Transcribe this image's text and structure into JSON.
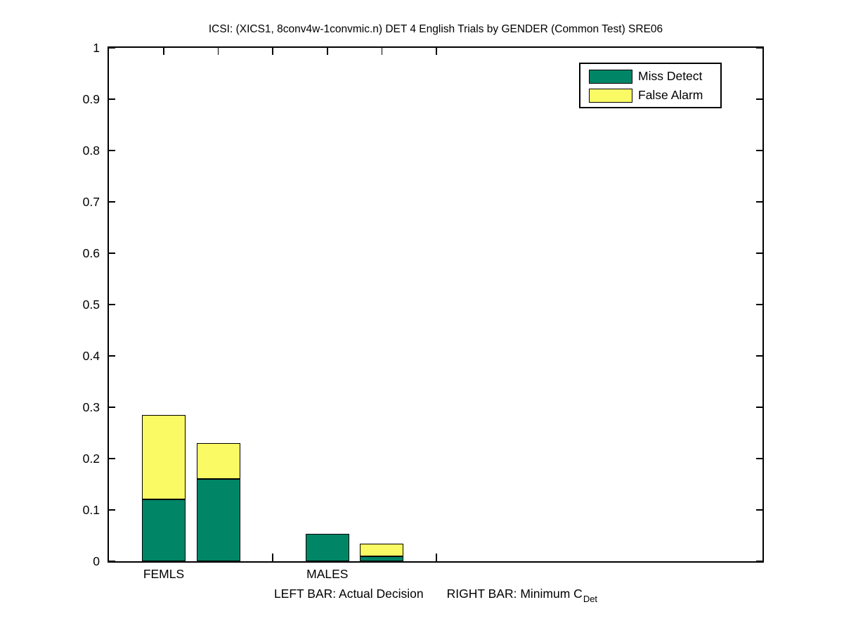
{
  "title": "ICSI: (XICS1, 8conv4w-1convmic.n) DET 4 English Trials by GENDER (Common Test) SRE06",
  "legend": {
    "position": "top-right",
    "items": [
      {
        "label": "Miss Detect",
        "color": "#008566"
      },
      {
        "label": "False Alarm",
        "color": "#FAFA64"
      }
    ]
  },
  "footnote": {
    "left": "LEFT BAR: Actual Decision",
    "right_prefix": "RIGHT BAR: Minimum C",
    "right_subscript": "Det"
  },
  "chart_data": {
    "type": "bar",
    "stacked": true,
    "title": "ICSI: (XICS1, 8conv4w-1convmic.n) DET 4 English Trials by GENDER (Common Test) SRE06",
    "xlabel": "",
    "ylabel": "",
    "ylim": [
      0,
      1
    ],
    "grid": false,
    "box": true,
    "legend_position": "top-right",
    "yticks": [
      0,
      0.1,
      0.2,
      0.3,
      0.4,
      0.5,
      0.6,
      0.7,
      0.8,
      0.9,
      1
    ],
    "yticklabels": [
      "0",
      "0.1",
      "0.2",
      "0.3",
      "0.4",
      "0.5",
      "0.6",
      "0.7",
      "0.8",
      "0.9",
      "1"
    ],
    "colors": {
      "miss_detect": "#008566",
      "false_alarm": "#FAFA64"
    },
    "series_names": [
      "Miss Detect",
      "False Alarm"
    ],
    "groups": [
      {
        "label": "FEMLS",
        "bars": [
          {
            "name": "Actual Decision",
            "miss_detect": 0.12,
            "false_alarm": 0.165,
            "total": 0.285
          },
          {
            "name": "Minimum CDet",
            "miss_detect": 0.16,
            "false_alarm": 0.07,
            "total": 0.23
          }
        ]
      },
      {
        "label": "MALES",
        "bars": [
          {
            "name": "Actual Decision",
            "miss_detect": 0.054,
            "false_alarm": 0,
            "total": 0.054
          },
          {
            "name": "Minimum CDet",
            "miss_detect": 0.01,
            "false_alarm": 0.025,
            "total": 0.035
          }
        ]
      }
    ]
  }
}
